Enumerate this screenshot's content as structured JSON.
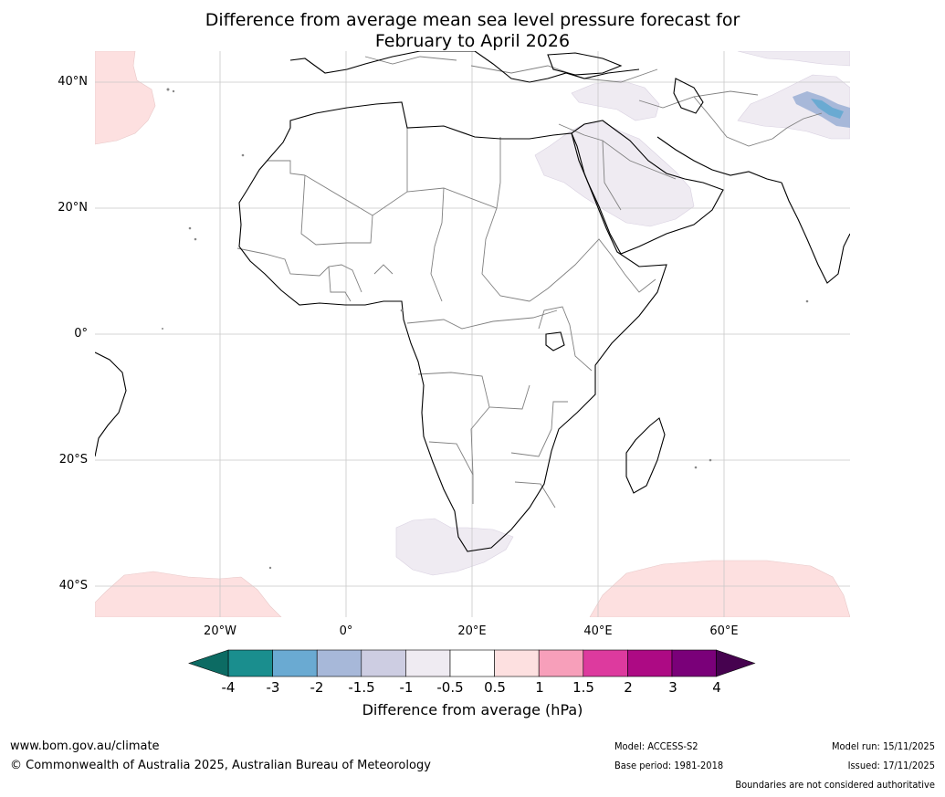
{
  "title_line1": "Difference from average mean sea level pressure forecast for",
  "title_line2": "February to April 2026",
  "lat_labels": [
    "40°N",
    "20°N",
    "0°",
    "20°S",
    "40°S"
  ],
  "lon_labels": [
    "20°W",
    "0°",
    "20°E",
    "40°E",
    "60°E"
  ],
  "colorbar": {
    "ticks": [
      "-4",
      "-3",
      "-2",
      "-1.5",
      "-1",
      "-0.5",
      "0.5",
      "1",
      "1.5",
      "2",
      "3",
      "4"
    ],
    "colors": [
      "#1a8e8e",
      "#6aaad2",
      "#a7b8d9",
      "#cdcde2",
      "#efebf2",
      "#ffffff",
      "#fde0e0",
      "#f79fba",
      "#dd3a9e",
      "#ad0a84",
      "#7a0079"
    ],
    "under_color": "#0c6b63",
    "over_color": "#46024f",
    "label": "Difference from average (hPa)"
  },
  "footer": {
    "url": "www.bom.gov.au/climate",
    "copyright": "© Commonwealth of Australia 2025, Australian Bureau of Meteorology",
    "model": "Model: ACCESS-S2",
    "base_period": "Base period: 1981-2018",
    "model_run": "Model run: 15/11/2025",
    "issued": "Issued: 17/11/2025",
    "boundaries": "Boundaries are not considered authoritative"
  }
}
